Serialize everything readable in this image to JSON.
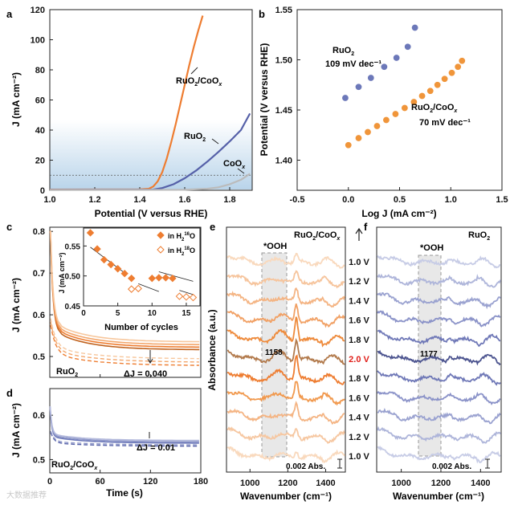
{
  "figure": {
    "watermark": "大数据推荐"
  },
  "chart_data": [
    {
      "panel": "a",
      "type": "line",
      "xlabel": "Potential (V versus RHE)",
      "ylabel": "J (mA cm⁻²)",
      "xlim": [
        1.0,
        1.9
      ],
      "ylim": [
        0,
        120
      ],
      "xticks": [
        "1.0",
        "1.2",
        "1.4",
        "1.6",
        "1.8"
      ],
      "yticks": [
        "0",
        "20",
        "40",
        "60",
        "80",
        "100",
        "120"
      ],
      "reference_line_y": 10,
      "series": [
        {
          "name": "RuO2/CoOx",
          "color": "#ee7d31",
          "x": [
            1.0,
            1.4,
            1.44,
            1.46,
            1.48,
            1.5,
            1.52,
            1.54,
            1.56,
            1.58,
            1.6,
            1.62,
            1.64,
            1.66,
            1.68
          ],
          "y": [
            0.5,
            0.6,
            1,
            2.5,
            6,
            12,
            21,
            32,
            44,
            57,
            70,
            83,
            95,
            106,
            116
          ]
        },
        {
          "name": "RuO2",
          "color": "#5560a8",
          "x": [
            1.0,
            1.46,
            1.5,
            1.55,
            1.6,
            1.65,
            1.7,
            1.75,
            1.8,
            1.85,
            1.89
          ],
          "y": [
            0.3,
            0.5,
            1.5,
            4,
            8,
            13,
            19,
            25.5,
            32.5,
            40,
            51
          ]
        },
        {
          "name": "CoOx",
          "color": "#bbbbbb",
          "x": [
            1.0,
            1.6,
            1.7,
            1.75,
            1.8,
            1.85,
            1.89
          ],
          "y": [
            0.2,
            0.3,
            1,
            2,
            4,
            7,
            11
          ]
        }
      ],
      "labels": {
        "s1": "RuO",
        "s1sub": "2",
        "s1b": "/CoO",
        "s1x": "x",
        "s2": "RuO",
        "s2sub": "2",
        "s3": "CoO",
        "s3x": "x"
      }
    },
    {
      "panel": "b",
      "type": "scatter",
      "xlabel": "Log J (mA cm⁻²)",
      "ylabel": "Potential (V versus RHE)",
      "xlim": [
        -0.5,
        1.5
      ],
      "ylim": [
        1.37,
        1.55
      ],
      "xticks": [
        "-0.5",
        "0.0",
        "0.5",
        "1.0",
        "1.5"
      ],
      "yticks": [
        "1.40",
        "1.45",
        "1.50",
        "1.55"
      ],
      "series": [
        {
          "name": "RuO2",
          "slope": "109 mV dec⁻¹",
          "color": "#6c78b9",
          "x": [
            -0.03,
            0.1,
            0.22,
            0.35,
            0.47,
            0.58,
            0.65
          ],
          "y": [
            1.462,
            1.473,
            1.482,
            1.493,
            1.502,
            1.513,
            1.532
          ]
        },
        {
          "name": "RuO2/CoOx",
          "slope": "70 mV dec⁻¹",
          "color": "#f0953a",
          "x": [
            0.0,
            0.1,
            0.19,
            0.28,
            0.37,
            0.46,
            0.55,
            0.64,
            0.72,
            0.8,
            0.87,
            0.94,
            1.01,
            1.07,
            1.11
          ],
          "y": [
            1.415,
            1.422,
            1.428,
            1.434,
            1.44,
            1.446,
            1.452,
            1.458,
            1.464,
            1.469,
            1.475,
            1.481,
            1.487,
            1.493,
            1.499
          ]
        }
      ]
    },
    {
      "panel": "c",
      "type": "line",
      "xlabel": "",
      "ylabel": "J (mA cm⁻²)",
      "ylim": [
        0.45,
        0.81
      ],
      "yticks": [
        "0.5",
        "0.6",
        "0.7",
        "0.8"
      ],
      "sample": "RuO2",
      "annotation": "ΔJ = 0.040",
      "inset": {
        "xlabel": "Number of cycles",
        "ylabel": "J (mA cm⁻²)",
        "xlim": [
          0,
          17
        ],
        "ylim": [
          0.45,
          0.58
        ],
        "xticks": [
          "0",
          "5",
          "10",
          "15"
        ],
        "yticks": [
          "0.45",
          "0.50",
          "0.55"
        ],
        "series": [
          {
            "name": "in H2 16O",
            "x": [
              1,
              2,
              3,
              4,
              5,
              6,
              7,
              10,
              11,
              12,
              13
            ],
            "y": [
              0.572,
              0.545,
              0.527,
              0.519,
              0.512,
              0.504,
              0.496,
              0.496,
              0.497,
              0.497,
              0.496
            ]
          },
          {
            "name": "in H2 18O",
            "x": [
              7,
              8,
              14,
              15,
              16
            ],
            "y": [
              0.478,
              0.479,
              0.466,
              0.465,
              0.464
            ]
          }
        ],
        "legend": [
          "in H",
          "2",
          "16",
          "O",
          "in H",
          "2",
          "18",
          "O"
        ]
      }
    },
    {
      "panel": "d",
      "type": "line",
      "xlabel": "Time (s)",
      "ylabel": "J (mA cm⁻²)",
      "xlim": [
        0,
        180
      ],
      "ylim": [
        0.47,
        0.66
      ],
      "xticks": [
        "0",
        "60",
        "120",
        "180"
      ],
      "yticks": [
        "0.5",
        "0.6"
      ],
      "sample": "RuO2/CoOx",
      "annotation": "ΔJ = 0.01"
    },
    {
      "panel": "e",
      "type": "line",
      "xlabel": "Wavenumber (cm⁻¹)",
      "ylabel": "Absorbance (a.u.)",
      "xticks": [
        "1000",
        "1200",
        "1400"
      ],
      "sample": "RuO2/CoOx",
      "band_label": "*OOH",
      "peak_label": "1158",
      "scale_label": "0.002 Abs.",
      "potentials": [
        "1.0 V",
        "1.2 V",
        "1.4 V",
        "1.6 V",
        "1.8 V",
        "2.0 V",
        "1.8 V",
        "1.6 V",
        "1.4 V",
        "1.2 V",
        "1.0 V"
      ]
    },
    {
      "panel": "f",
      "type": "line",
      "xlabel": "Wavenumber (cm⁻¹)",
      "xticks": [
        "1000",
        "1200",
        "1400"
      ],
      "sample": "RuO2",
      "band_label": "*OOH",
      "peak_label": "1177",
      "scale_label": "0.002 Abs."
    }
  ],
  "colors": {
    "orange": "#ee7d31",
    "blue": "#5560a8",
    "grey": "#bbbbbb",
    "red": "#e0201b"
  }
}
